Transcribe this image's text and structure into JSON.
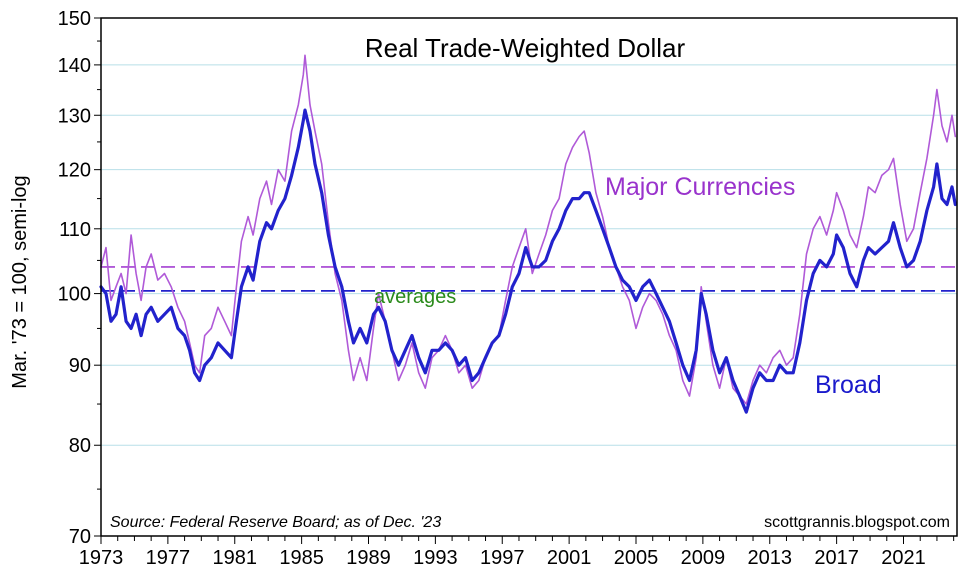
{
  "chart_data": {
    "type": "line",
    "title": "Real Trade-Weighted Dollar",
    "ylabel": "Mar. '73 = 100, semi-log",
    "xlabel": "",
    "xlim": [
      1973,
      2024.2
    ],
    "ylim": [
      70,
      150
    ],
    "yscale": "log",
    "grid": "horizontal",
    "x_ticks": [
      1973,
      1977,
      1981,
      1985,
      1989,
      1993,
      1997,
      2001,
      2005,
      2009,
      2013,
      2017,
      2021
    ],
    "x_tick_labels": [
      "1973",
      "1977",
      "1981",
      "1985",
      "1989",
      "1993",
      "1997",
      "2001",
      "2005",
      "2009",
      "2013",
      "2017",
      "2021"
    ],
    "y_ticks": [
      70,
      80,
      90,
      100,
      110,
      120,
      130,
      140,
      150
    ],
    "y_tick_labels": [
      "70",
      "80",
      "90",
      "100",
      "110",
      "120",
      "130",
      "140",
      "150"
    ],
    "series": [
      {
        "name": "Major Currencies",
        "label": "Major Currencies",
        "color": "#b05ad8",
        "label_color": "#9933cc",
        "points": [
          [
            1973.0,
            104
          ],
          [
            1973.3,
            107
          ],
          [
            1973.6,
            99
          ],
          [
            1973.9,
            101
          ],
          [
            1974.2,
            103
          ],
          [
            1974.5,
            100
          ],
          [
            1974.8,
            109
          ],
          [
            1975.1,
            103
          ],
          [
            1975.4,
            99
          ],
          [
            1975.7,
            104
          ],
          [
            1976.0,
            106
          ],
          [
            1976.4,
            102
          ],
          [
            1976.8,
            103
          ],
          [
            1977.2,
            101
          ],
          [
            1977.6,
            98
          ],
          [
            1978.0,
            96
          ],
          [
            1978.3,
            93
          ],
          [
            1978.6,
            90
          ],
          [
            1978.9,
            89
          ],
          [
            1979.2,
            94
          ],
          [
            1979.6,
            95
          ],
          [
            1980.0,
            98
          ],
          [
            1980.4,
            96
          ],
          [
            1980.8,
            94
          ],
          [
            1981.1,
            101
          ],
          [
            1981.4,
            108
          ],
          [
            1981.8,
            112
          ],
          [
            1982.1,
            109
          ],
          [
            1982.5,
            115
          ],
          [
            1982.9,
            118
          ],
          [
            1983.2,
            114
          ],
          [
            1983.6,
            120
          ],
          [
            1984.0,
            118
          ],
          [
            1984.4,
            127
          ],
          [
            1984.8,
            132
          ],
          [
            1985.1,
            138
          ],
          [
            1985.2,
            142
          ],
          [
            1985.5,
            132
          ],
          [
            1985.8,
            127
          ],
          [
            1986.2,
            121
          ],
          [
            1986.6,
            111
          ],
          [
            1987.0,
            103
          ],
          [
            1987.4,
            99
          ],
          [
            1987.8,
            92
          ],
          [
            1988.1,
            88
          ],
          [
            1988.5,
            91
          ],
          [
            1988.9,
            88
          ],
          [
            1989.3,
            95
          ],
          [
            1989.6,
            100
          ],
          [
            1990.0,
            96
          ],
          [
            1990.4,
            92
          ],
          [
            1990.8,
            88
          ],
          [
            1991.2,
            90
          ],
          [
            1991.6,
            93
          ],
          [
            1992.0,
            89
          ],
          [
            1992.4,
            87
          ],
          [
            1992.8,
            91
          ],
          [
            1993.2,
            92
          ],
          [
            1993.6,
            94
          ],
          [
            1994.0,
            92
          ],
          [
            1994.4,
            89
          ],
          [
            1994.8,
            90
          ],
          [
            1995.2,
            87
          ],
          [
            1995.6,
            88
          ],
          [
            1996.0,
            91
          ],
          [
            1996.4,
            93
          ],
          [
            1996.8,
            94
          ],
          [
            1997.2,
            99
          ],
          [
            1997.6,
            104
          ],
          [
            1998.0,
            107
          ],
          [
            1998.4,
            110
          ],
          [
            1998.8,
            103
          ],
          [
            1999.2,
            106
          ],
          [
            1999.6,
            109
          ],
          [
            2000.0,
            113
          ],
          [
            2000.4,
            115
          ],
          [
            2000.8,
            121
          ],
          [
            2001.2,
            124
          ],
          [
            2001.6,
            126
          ],
          [
            2001.9,
            127
          ],
          [
            2002.2,
            123
          ],
          [
            2002.6,
            116
          ],
          [
            2003.0,
            112
          ],
          [
            2003.4,
            107
          ],
          [
            2003.8,
            104
          ],
          [
            2004.2,
            101
          ],
          [
            2004.6,
            99
          ],
          [
            2005.0,
            95
          ],
          [
            2005.4,
            98
          ],
          [
            2005.8,
            100
          ],
          [
            2006.2,
            99
          ],
          [
            2006.6,
            97
          ],
          [
            2007.0,
            94
          ],
          [
            2007.4,
            92
          ],
          [
            2007.8,
            88
          ],
          [
            2008.2,
            86
          ],
          [
            2008.6,
            91
          ],
          [
            2008.9,
            101
          ],
          [
            2009.2,
            96
          ],
          [
            2009.6,
            90
          ],
          [
            2010.0,
            87
          ],
          [
            2010.4,
            91
          ],
          [
            2010.8,
            87
          ],
          [
            2011.2,
            86
          ],
          [
            2011.6,
            85
          ],
          [
            2012.0,
            88
          ],
          [
            2012.4,
            90
          ],
          [
            2012.8,
            89
          ],
          [
            2013.2,
            91
          ],
          [
            2013.6,
            92
          ],
          [
            2014.0,
            90
          ],
          [
            2014.4,
            91
          ],
          [
            2014.8,
            97
          ],
          [
            2015.2,
            106
          ],
          [
            2015.6,
            110
          ],
          [
            2016.0,
            112
          ],
          [
            2016.4,
            109
          ],
          [
            2016.8,
            113
          ],
          [
            2017.0,
            116
          ],
          [
            2017.4,
            113
          ],
          [
            2017.8,
            109
          ],
          [
            2018.2,
            107
          ],
          [
            2018.6,
            112
          ],
          [
            2018.9,
            117
          ],
          [
            2019.3,
            116
          ],
          [
            2019.7,
            119
          ],
          [
            2020.1,
            120
          ],
          [
            2020.4,
            122
          ],
          [
            2020.8,
            114
          ],
          [
            2021.2,
            108
          ],
          [
            2021.6,
            110
          ],
          [
            2022.0,
            116
          ],
          [
            2022.4,
            122
          ],
          [
            2022.8,
            130
          ],
          [
            2023.0,
            135
          ],
          [
            2023.3,
            128
          ],
          [
            2023.6,
            125
          ],
          [
            2023.9,
            130
          ],
          [
            2024.1,
            126
          ]
        ]
      },
      {
        "name": "Broad",
        "label": "Broad",
        "color": "#2222cc",
        "label_color": "#1a1acc",
        "points": [
          [
            1973.0,
            101
          ],
          [
            1973.3,
            100
          ],
          [
            1973.6,
            96
          ],
          [
            1973.9,
            97
          ],
          [
            1974.2,
            101
          ],
          [
            1974.5,
            96
          ],
          [
            1974.8,
            95
          ],
          [
            1975.1,
            97
          ],
          [
            1975.4,
            94
          ],
          [
            1975.7,
            97
          ],
          [
            1976.0,
            98
          ],
          [
            1976.4,
            96
          ],
          [
            1976.8,
            97
          ],
          [
            1977.2,
            98
          ],
          [
            1977.6,
            95
          ],
          [
            1978.0,
            94
          ],
          [
            1978.3,
            92
          ],
          [
            1978.6,
            89
          ],
          [
            1978.9,
            88
          ],
          [
            1979.2,
            90
          ],
          [
            1979.6,
            91
          ],
          [
            1980.0,
            93
          ],
          [
            1980.4,
            92
          ],
          [
            1980.8,
            91
          ],
          [
            1981.1,
            96
          ],
          [
            1981.4,
            101
          ],
          [
            1981.8,
            104
          ],
          [
            1982.1,
            102
          ],
          [
            1982.5,
            108
          ],
          [
            1982.9,
            111
          ],
          [
            1983.2,
            110
          ],
          [
            1983.6,
            113
          ],
          [
            1984.0,
            115
          ],
          [
            1984.4,
            119
          ],
          [
            1984.8,
            124
          ],
          [
            1985.1,
            129
          ],
          [
            1985.2,
            131
          ],
          [
            1985.5,
            127
          ],
          [
            1985.8,
            121
          ],
          [
            1986.2,
            116
          ],
          [
            1986.6,
            109
          ],
          [
            1987.0,
            104
          ],
          [
            1987.4,
            101
          ],
          [
            1987.8,
            96
          ],
          [
            1988.1,
            93
          ],
          [
            1988.5,
            95
          ],
          [
            1988.9,
            93
          ],
          [
            1989.3,
            97
          ],
          [
            1989.6,
            98
          ],
          [
            1990.0,
            96
          ],
          [
            1990.4,
            92
          ],
          [
            1990.8,
            90
          ],
          [
            1991.2,
            92
          ],
          [
            1991.6,
            94
          ],
          [
            1992.0,
            91
          ],
          [
            1992.4,
            89
          ],
          [
            1992.8,
            92
          ],
          [
            1993.2,
            92
          ],
          [
            1993.6,
            93
          ],
          [
            1994.0,
            92
          ],
          [
            1994.4,
            90
          ],
          [
            1994.8,
            91
          ],
          [
            1995.2,
            88
          ],
          [
            1995.6,
            89
          ],
          [
            1996.0,
            91
          ],
          [
            1996.4,
            93
          ],
          [
            1996.8,
            94
          ],
          [
            1997.2,
            97
          ],
          [
            1997.6,
            101
          ],
          [
            1998.0,
            103
          ],
          [
            1998.4,
            107
          ],
          [
            1998.8,
            104
          ],
          [
            1999.2,
            104
          ],
          [
            1999.6,
            105
          ],
          [
            2000.0,
            108
          ],
          [
            2000.4,
            110
          ],
          [
            2000.8,
            113
          ],
          [
            2001.2,
            115
          ],
          [
            2001.6,
            115
          ],
          [
            2001.9,
            116
          ],
          [
            2002.2,
            116
          ],
          [
            2002.6,
            113
          ],
          [
            2003.0,
            110
          ],
          [
            2003.4,
            107
          ],
          [
            2003.8,
            104
          ],
          [
            2004.2,
            102
          ],
          [
            2004.6,
            101
          ],
          [
            2005.0,
            99
          ],
          [
            2005.4,
            101
          ],
          [
            2005.8,
            102
          ],
          [
            2006.2,
            100
          ],
          [
            2006.6,
            98
          ],
          [
            2007.0,
            96
          ],
          [
            2007.4,
            93
          ],
          [
            2007.8,
            90
          ],
          [
            2008.2,
            88
          ],
          [
            2008.6,
            92
          ],
          [
            2008.9,
            100
          ],
          [
            2009.2,
            97
          ],
          [
            2009.6,
            92
          ],
          [
            2010.0,
            89
          ],
          [
            2010.4,
            91
          ],
          [
            2010.8,
            88
          ],
          [
            2011.2,
            86
          ],
          [
            2011.6,
            84
          ],
          [
            2012.0,
            87
          ],
          [
            2012.4,
            89
          ],
          [
            2012.8,
            88
          ],
          [
            2013.2,
            88
          ],
          [
            2013.6,
            90
          ],
          [
            2014.0,
            89
          ],
          [
            2014.4,
            89
          ],
          [
            2014.8,
            93
          ],
          [
            2015.2,
            99
          ],
          [
            2015.6,
            103
          ],
          [
            2016.0,
            105
          ],
          [
            2016.4,
            104
          ],
          [
            2016.8,
            106
          ],
          [
            2017.0,
            109
          ],
          [
            2017.4,
            107
          ],
          [
            2017.8,
            103
          ],
          [
            2018.2,
            101
          ],
          [
            2018.6,
            105
          ],
          [
            2018.9,
            107
          ],
          [
            2019.3,
            106
          ],
          [
            2019.7,
            107
          ],
          [
            2020.1,
            108
          ],
          [
            2020.4,
            111
          ],
          [
            2020.8,
            107
          ],
          [
            2021.2,
            104
          ],
          [
            2021.6,
            105
          ],
          [
            2022.0,
            108
          ],
          [
            2022.4,
            113
          ],
          [
            2022.8,
            117
          ],
          [
            2023.0,
            121
          ],
          [
            2023.3,
            115
          ],
          [
            2023.6,
            114
          ],
          [
            2023.9,
            117
          ],
          [
            2024.1,
            114
          ]
        ]
      }
    ],
    "reference_lines": [
      {
        "name": "Major Currencies average",
        "value": 104,
        "color": "#b05ad8",
        "style": "dashed"
      },
      {
        "name": "Broad average",
        "value": 100.4,
        "color": "#2222cc",
        "style": "dashed"
      }
    ],
    "annotations": {
      "averages": {
        "text": "averages",
        "color": "#2a8a1a"
      },
      "source": "Source: Federal Reserve Board; as of Dec. '23",
      "credit": "scottgrannis.blogspot.com"
    }
  }
}
